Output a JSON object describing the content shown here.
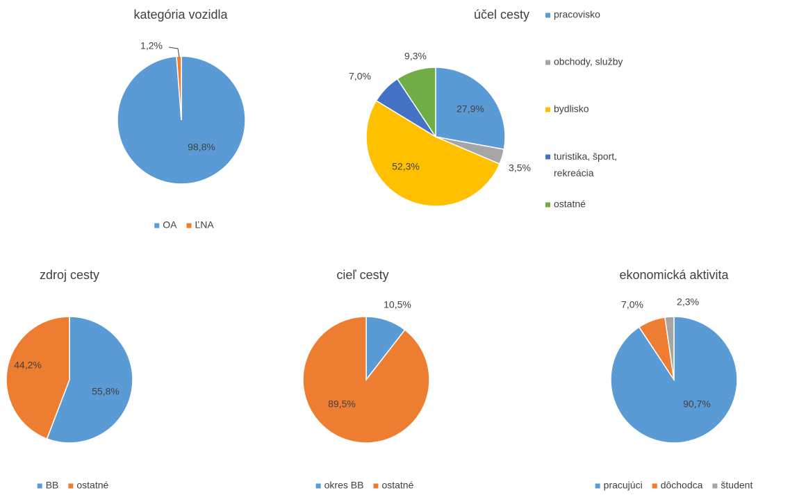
{
  "chart_data": [
    {
      "type": "pie",
      "title": "kategória vozidla",
      "categories": [
        "OA",
        "ĽNA"
      ],
      "values": [
        98.8,
        1.2
      ],
      "value_labels": [
        "98,8%",
        "1,2%"
      ],
      "colors": [
        "#5b9bd5",
        "#ed7d31"
      ],
      "legend": "bottom"
    },
    {
      "type": "pie",
      "title": "účel cesty",
      "categories": [
        "pracovisko",
        "obchody, služby",
        "bydlisko",
        "turistika, šport, rekreácia",
        "ostatné"
      ],
      "values": [
        27.9,
        3.5,
        52.3,
        7.0,
        9.3
      ],
      "value_labels": [
        "27,9%",
        "3,5%",
        "52,3%",
        "7,0%",
        "9,3%"
      ],
      "colors": [
        "#5b9bd5",
        "#a5a5a5",
        "#ffc000",
        "#4472c4",
        "#70ad47"
      ],
      "legend": "right"
    },
    {
      "type": "pie",
      "title": "zdroj cesty",
      "categories": [
        "BB",
        "ostatné"
      ],
      "values": [
        55.8,
        44.2
      ],
      "value_labels": [
        "55,8%",
        "44,2%"
      ],
      "colors": [
        "#5b9bd5",
        "#ed7d31"
      ],
      "legend": "bottom"
    },
    {
      "type": "pie",
      "title": "cieľ cesty",
      "categories": [
        "okres BB",
        "ostatné"
      ],
      "values": [
        10.5,
        89.5
      ],
      "value_labels": [
        "10,5%",
        "89,5%"
      ],
      "colors": [
        "#5b9bd5",
        "#ed7d31"
      ],
      "legend": "bottom"
    },
    {
      "type": "pie",
      "title": "ekonomická aktivita",
      "categories": [
        "pracujúci",
        "dôchodca",
        "študent"
      ],
      "values": [
        90.7,
        7.0,
        2.3
      ],
      "value_labels": [
        "90,7%",
        "7,0%",
        "2,3%"
      ],
      "colors": [
        "#5b9bd5",
        "#ed7d31",
        "#a5a5a5"
      ],
      "legend": "bottom"
    }
  ]
}
